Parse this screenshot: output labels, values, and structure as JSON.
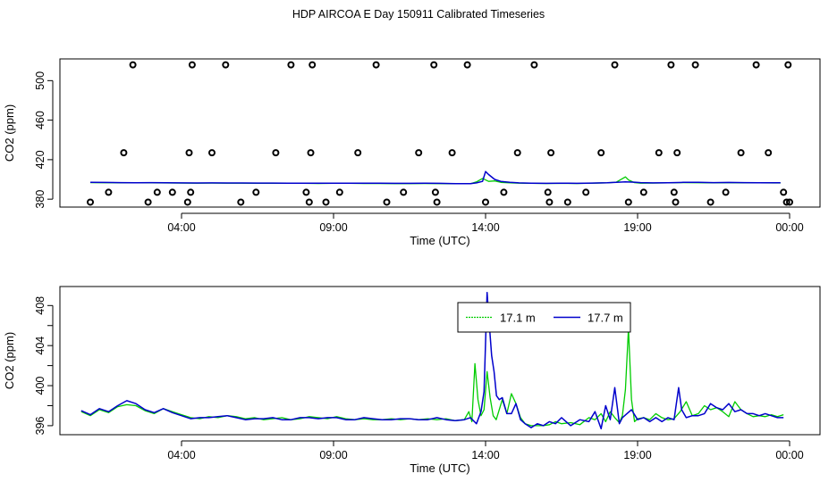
{
  "page": {
    "title": "HDP AIRCOA E  Day 150911  Calibrated Timeseries"
  },
  "colors": {
    "green": "#00cc00",
    "blue": "#0000cc",
    "frame": "#000000"
  },
  "chart_data": [
    {
      "type": "scatter",
      "panel": "top",
      "xlabel": "Time (UTC)",
      "ylabel": "CO2 (ppm)",
      "xlim": [
        -0.5,
        24.5
      ],
      "ylim": [
        372,
        522
      ],
      "xticks": [
        {
          "value": 3.5,
          "label": "04:00"
        },
        {
          "value": 8.5,
          "label": "09:00"
        },
        {
          "value": 13.5,
          "label": "14:00"
        },
        {
          "value": 18.5,
          "label": "19:00"
        },
        {
          "value": 23.5,
          "label": "00:00"
        }
      ],
      "yticks": [
        380,
        420,
        460,
        500
      ],
      "markers": {
        "x": [
          0.5,
          1.1,
          1.6,
          1.9,
          2.4,
          2.7,
          3.2,
          3.7,
          3.75,
          3.8,
          3.85,
          4.5,
          4.95,
          5.45,
          5.95,
          6.6,
          7.1,
          7.6,
          7.7,
          7.75,
          7.8,
          8.25,
          8.7,
          9.3,
          9.9,
          10.25,
          10.8,
          11.3,
          11.8,
          11.85,
          11.9,
          12.4,
          12.9,
          13.5,
          14.1,
          14.55,
          15.1,
          15.55,
          15.6,
          15.65,
          16.2,
          16.8,
          17.3,
          17.75,
          18.2,
          18.7,
          19.2,
          19.6,
          19.7,
          19.75,
          19.8,
          20.4,
          20.9,
          21.4,
          21.9,
          22.4,
          22.8,
          23.3,
          23.4,
          23.45,
          23.5
        ],
        "y": [
          377,
          387,
          427,
          516,
          377,
          387,
          387,
          377,
          427,
          387,
          516,
          427,
          516,
          377,
          387,
          427,
          516,
          387,
          377,
          427,
          516,
          377,
          387,
          427,
          516,
          377,
          387,
          427,
          516,
          387,
          377,
          427,
          516,
          377,
          387,
          427,
          516,
          387,
          377,
          427,
          377,
          387,
          427,
          516,
          377,
          387,
          427,
          516,
          387,
          377,
          427,
          516,
          377,
          387,
          427,
          516,
          427,
          387,
          377,
          516,
          377
        ]
      },
      "series": [
        {
          "name": "17.1 m",
          "x": [
            0.5,
            1,
            1.5,
            2,
            2.5,
            3,
            3.5,
            4,
            4.5,
            5,
            5.5,
            6,
            6.5,
            7,
            7.5,
            8,
            8.5,
            9,
            9.5,
            10,
            10.5,
            11,
            11.5,
            12,
            12.5,
            13,
            13.2,
            13.4,
            13.6,
            13.8,
            14,
            14.3,
            14.6,
            15,
            15.5,
            16,
            16.5,
            17,
            17.5,
            17.8,
            18.1,
            18.2,
            18.4,
            18.6,
            19,
            19.5,
            20,
            20.5,
            21,
            21.5,
            22,
            22.5,
            23,
            23.2
          ],
          "y": [
            396.8,
            396.7,
            396.6,
            396.5,
            396.6,
            396.4,
            396.3,
            396.2,
            396.3,
            396.2,
            396.2,
            396.1,
            396.1,
            396.0,
            396.0,
            395.9,
            396.0,
            396.0,
            395.9,
            395.9,
            395.8,
            395.8,
            395.9,
            395.8,
            395.6,
            395.6,
            397.5,
            401,
            398,
            398.5,
            397,
            396.5,
            396.2,
            396,
            395.9,
            396.1,
            395.9,
            396.2,
            396.6,
            397.2,
            402.5,
            399.5,
            396.8,
            396.2,
            396.3,
            396.5,
            396.8,
            396.7,
            396.6,
            396.7,
            396.6,
            396.5,
            396.4,
            396.4
          ]
        },
        {
          "name": "17.7 m",
          "x": [
            0.5,
            1,
            1.5,
            2,
            2.5,
            3,
            3.5,
            4,
            4.5,
            5,
            5.5,
            6,
            6.5,
            7,
            7.5,
            8,
            8.5,
            9,
            9.5,
            10,
            10.5,
            11,
            11.5,
            12,
            12.5,
            13,
            13.2,
            13.4,
            13.5,
            13.6,
            13.8,
            14,
            14.3,
            14.6,
            15,
            15.5,
            16,
            16.5,
            17,
            17.5,
            17.8,
            18.1,
            18.4,
            18.6,
            19,
            19.5,
            20,
            20.5,
            21,
            21.5,
            22,
            22.5,
            23,
            23.2
          ],
          "y": [
            397.0,
            396.9,
            396.8,
            396.7,
            396.8,
            396.6,
            396.5,
            396.4,
            396.5,
            396.4,
            396.4,
            396.3,
            396.3,
            396.2,
            396.2,
            396.1,
            396.2,
            396.2,
            396.1,
            396.1,
            396.0,
            396.0,
            396.1,
            396.0,
            395.8,
            395.8,
            396.5,
            398,
            408,
            405,
            400,
            398,
            397,
            396.5,
            396.2,
            396,
            396.2,
            396,
            396.3,
            396.6,
            397,
            397.5,
            397.2,
            396.8,
            396.5,
            396.7,
            397,
            397,
            396.8,
            396.9,
            396.8,
            396.7,
            396.6,
            396.6
          ]
        }
      ]
    },
    {
      "type": "line",
      "panel": "bottom",
      "xlabel": "Time (UTC)",
      "ylabel": "CO2 (ppm)",
      "xlim": [
        -0.5,
        24.5
      ],
      "ylim": [
        395.1,
        409.9
      ],
      "xticks": [
        {
          "value": 3.5,
          "label": "04:00"
        },
        {
          "value": 8.5,
          "label": "09:00"
        },
        {
          "value": 13.5,
          "label": "14:00"
        },
        {
          "value": 18.5,
          "label": "19:00"
        },
        {
          "value": 23.5,
          "label": "00:00"
        }
      ],
      "yticks": [
        396,
        398,
        400,
        402,
        404,
        406,
        408
      ],
      "ytick_labels_shown": [
        396,
        400,
        404,
        408
      ],
      "legend": {
        "position": "top-center"
      },
      "series": [
        {
          "name": "17.1 m",
          "x": [
            0.2,
            0.5,
            0.8,
            1.1,
            1.4,
            1.7,
            2.0,
            2.3,
            2.6,
            2.9,
            3.2,
            3.5,
            3.8,
            4.1,
            4.4,
            4.7,
            5.0,
            5.3,
            5.6,
            5.9,
            6.2,
            6.5,
            6.8,
            7.1,
            7.4,
            7.7,
            8.0,
            8.3,
            8.6,
            8.9,
            9.2,
            9.5,
            9.8,
            10.1,
            10.4,
            10.7,
            11.0,
            11.3,
            11.6,
            11.9,
            12.2,
            12.5,
            12.8,
            12.95,
            13.05,
            13.15,
            13.25,
            13.35,
            13.45,
            13.55,
            13.65,
            13.75,
            13.85,
            13.95,
            14.05,
            14.2,
            14.35,
            14.5,
            14.65,
            14.8,
            15.0,
            15.2,
            15.4,
            15.6,
            15.8,
            16.0,
            16.3,
            16.6,
            16.9,
            17.1,
            17.3,
            17.45,
            17.6,
            17.75,
            17.9,
            18.0,
            18.1,
            18.2,
            18.3,
            18.4,
            18.5,
            18.7,
            18.9,
            19.1,
            19.3,
            19.5,
            19.7,
            19.9,
            20.1,
            20.3,
            20.5,
            20.7,
            20.9,
            21.1,
            21.3,
            21.5,
            21.7,
            21.9,
            22.1,
            22.3,
            22.5,
            22.7,
            22.9,
            23.1,
            23.3
          ],
          "y": [
            397.4,
            397.0,
            397.6,
            397.3,
            397.9,
            398.1,
            398.0,
            397.5,
            397.2,
            397.7,
            397.4,
            397.1,
            396.8,
            396.7,
            396.9,
            396.8,
            397.0,
            396.9,
            396.7,
            396.8,
            396.6,
            396.7,
            396.8,
            396.6,
            396.7,
            396.9,
            396.8,
            396.7,
            396.9,
            396.7,
            396.6,
            396.7,
            396.6,
            396.6,
            396.7,
            396.6,
            396.7,
            396.6,
            396.7,
            396.6,
            396.7,
            396.5,
            396.6,
            397.4,
            396.4,
            402.2,
            398.6,
            397.0,
            397.6,
            401.4,
            398.8,
            397.0,
            396.6,
            397.6,
            398.6,
            397.2,
            399.2,
            398.2,
            396.8,
            396.2,
            396.0,
            396.0,
            396.0,
            396.1,
            396.4,
            396.2,
            396.3,
            396.1,
            396.8,
            396.6,
            397.2,
            396.4,
            397.4,
            396.8,
            396.3,
            397.0,
            399.6,
            405.7,
            398.6,
            396.4,
            396.7,
            396.8,
            396.6,
            397.2,
            396.8,
            396.6,
            396.7,
            397.4,
            398.4,
            397.0,
            397.2,
            398.0,
            397.6,
            397.8,
            397.4,
            396.9,
            398.4,
            397.6,
            397.2,
            396.9,
            397.0,
            396.9,
            397.1,
            396.9,
            397.1
          ]
        },
        {
          "name": "17.7 m",
          "x": [
            0.2,
            0.5,
            0.8,
            1.1,
            1.4,
            1.7,
            2.0,
            2.3,
            2.6,
            2.9,
            3.2,
            3.5,
            3.8,
            4.1,
            4.4,
            4.7,
            5.0,
            5.3,
            5.6,
            5.9,
            6.2,
            6.5,
            6.8,
            7.1,
            7.4,
            7.7,
            8.0,
            8.3,
            8.6,
            8.9,
            9.2,
            9.5,
            9.8,
            10.1,
            10.4,
            10.7,
            11.0,
            11.3,
            11.6,
            11.9,
            12.2,
            12.5,
            12.8,
            13.0,
            13.2,
            13.35,
            13.45,
            13.55,
            13.62,
            13.7,
            13.78,
            13.86,
            13.95,
            14.05,
            14.2,
            14.35,
            14.5,
            14.65,
            14.8,
            15.0,
            15.2,
            15.4,
            15.6,
            15.8,
            16.0,
            16.3,
            16.6,
            16.9,
            17.1,
            17.3,
            17.45,
            17.6,
            17.75,
            17.9,
            18.0,
            18.15,
            18.3,
            18.5,
            18.7,
            18.9,
            19.1,
            19.3,
            19.5,
            19.7,
            19.85,
            19.95,
            20.1,
            20.3,
            20.5,
            20.7,
            20.9,
            21.1,
            21.3,
            21.5,
            21.7,
            21.9,
            22.1,
            22.3,
            22.5,
            22.7,
            22.9,
            23.1,
            23.3
          ],
          "y": [
            397.5,
            397.1,
            397.7,
            397.4,
            398.0,
            398.5,
            398.2,
            397.6,
            397.3,
            397.7,
            397.3,
            397.0,
            396.7,
            396.8,
            396.8,
            396.9,
            397.0,
            396.8,
            396.6,
            396.7,
            396.7,
            396.8,
            396.6,
            396.6,
            396.8,
            396.8,
            396.7,
            396.8,
            396.8,
            396.6,
            396.6,
            396.8,
            396.7,
            396.6,
            396.6,
            396.7,
            396.7,
            396.6,
            396.6,
            396.8,
            396.6,
            396.5,
            396.6,
            396.8,
            396.2,
            397.4,
            399.4,
            409.3,
            406.2,
            403.0,
            401.4,
            399.0,
            398.6,
            398.8,
            397.2,
            397.2,
            398.2,
            396.6,
            396.2,
            395.8,
            396.2,
            396.0,
            396.4,
            396.2,
            396.8,
            396.0,
            396.6,
            396.4,
            397.4,
            395.7,
            398.0,
            396.6,
            399.8,
            396.2,
            396.8,
            397.2,
            397.6,
            396.6,
            396.8,
            396.4,
            396.8,
            396.4,
            396.8,
            396.6,
            399.8,
            397.6,
            396.8,
            397.0,
            397.0,
            397.2,
            398.2,
            397.8,
            397.6,
            398.2,
            397.4,
            397.6,
            397.2,
            397.2,
            397.0,
            397.2,
            397.0,
            396.8,
            396.8
          ]
        }
      ]
    }
  ]
}
